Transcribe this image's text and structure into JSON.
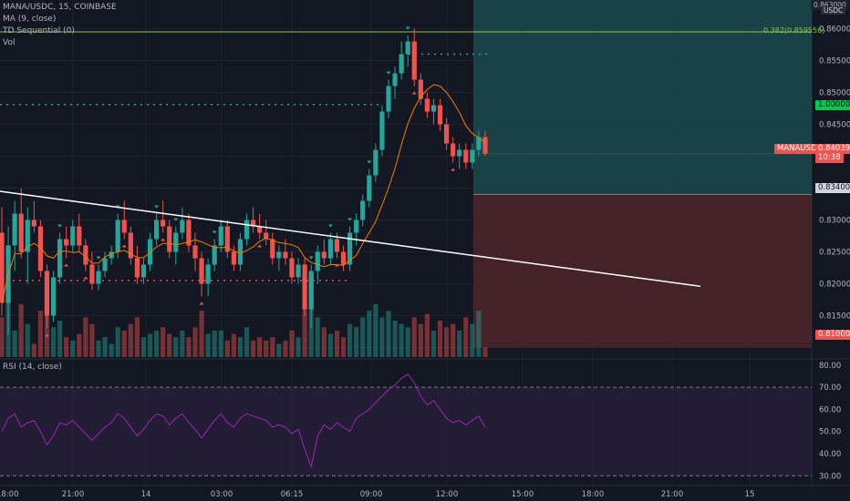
{
  "symbol_legend": "MANA/USDC, 15, COINBASE",
  "indicators": [
    "MA (9, close)",
    "TD Sequential (0)",
    "Vol"
  ],
  "rsi_legend": "RSI (14, close)",
  "currency_badge": "USDC",
  "top_price_tag": "0.863000",
  "fib_label": "0.382(0.859556)",
  "tags": {
    "tp_price": "1.000000",
    "last_symbol": "MANAUSDC",
    "last_price": "0.840397",
    "countdown": "10:38",
    "entry_price": "0.834000",
    "stop_price": "0.810000"
  },
  "price_axis": [
    "0.860000",
    "0.855000",
    "0.850000",
    "0.845000",
    "0.835000",
    "0.830000",
    "0.825000",
    "0.820000",
    "0.815000"
  ],
  "rsi_axis": [
    "80.00",
    "70.00",
    "60.00",
    "50.00",
    "40.00",
    "30.00"
  ],
  "time_axis": [
    "18:00",
    "21:00",
    "14",
    "03:00",
    "06:15",
    "09:00",
    "12:00",
    "15:00",
    "18:00",
    "21:00",
    "15"
  ],
  "colors": {
    "up": "#26a69a",
    "down": "#ef5350",
    "ma": "#f57c00",
    "rsi": "#9c27b0",
    "profit_zone": "#1a4a4c",
    "loss_zone": "#4a2428",
    "fib_line": "#8bc34a",
    "trendline": "#ffffff"
  },
  "icons": {
    "td_buy_marker": "triangle-up-icon",
    "td_sell_marker": "triangle-down-icon"
  },
  "chart_data": {
    "type": "candlestick",
    "title": "MANA/USDC, 15, COINBASE",
    "interval": "15",
    "y_range": [
      0.8085,
      0.8645
    ],
    "rsi_range": [
      26,
      82
    ],
    "rsi_bands": [
      70,
      30
    ],
    "candles": [
      {
        "o": 0.828,
        "h": 0.832,
        "l": 0.815,
        "c": 0.817
      },
      {
        "o": 0.817,
        "h": 0.829,
        "l": 0.812,
        "c": 0.826
      },
      {
        "o": 0.826,
        "h": 0.833,
        "l": 0.822,
        "c": 0.831
      },
      {
        "o": 0.831,
        "h": 0.835,
        "l": 0.824,
        "c": 0.825
      },
      {
        "o": 0.825,
        "h": 0.832,
        "l": 0.82,
        "c": 0.83
      },
      {
        "o": 0.83,
        "h": 0.833,
        "l": 0.828,
        "c": 0.829
      },
      {
        "o": 0.829,
        "h": 0.83,
        "l": 0.821,
        "c": 0.822
      },
      {
        "o": 0.822,
        "h": 0.823,
        "l": 0.813,
        "c": 0.815
      },
      {
        "o": 0.815,
        "h": 0.822,
        "l": 0.814,
        "c": 0.821
      },
      {
        "o": 0.821,
        "h": 0.828,
        "l": 0.82,
        "c": 0.827
      },
      {
        "o": 0.827,
        "h": 0.829,
        "l": 0.824,
        "c": 0.826
      },
      {
        "o": 0.826,
        "h": 0.83,
        "l": 0.825,
        "c": 0.829
      },
      {
        "o": 0.829,
        "h": 0.831,
        "l": 0.825,
        "c": 0.826
      },
      {
        "o": 0.826,
        "h": 0.827,
        "l": 0.822,
        "c": 0.823
      },
      {
        "o": 0.823,
        "h": 0.825,
        "l": 0.819,
        "c": 0.82
      },
      {
        "o": 0.82,
        "h": 0.823,
        "l": 0.819,
        "c": 0.822
      },
      {
        "o": 0.822,
        "h": 0.825,
        "l": 0.821,
        "c": 0.824
      },
      {
        "o": 0.824,
        "h": 0.826,
        "l": 0.823,
        "c": 0.825
      },
      {
        "o": 0.825,
        "h": 0.831,
        "l": 0.824,
        "c": 0.83
      },
      {
        "o": 0.83,
        "h": 0.833,
        "l": 0.827,
        "c": 0.828
      },
      {
        "o": 0.828,
        "h": 0.829,
        "l": 0.823,
        "c": 0.824
      },
      {
        "o": 0.824,
        "h": 0.826,
        "l": 0.82,
        "c": 0.821
      },
      {
        "o": 0.821,
        "h": 0.824,
        "l": 0.82,
        "c": 0.823
      },
      {
        "o": 0.823,
        "h": 0.828,
        "l": 0.822,
        "c": 0.827
      },
      {
        "o": 0.827,
        "h": 0.831,
        "l": 0.826,
        "c": 0.83
      },
      {
        "o": 0.83,
        "h": 0.833,
        "l": 0.828,
        "c": 0.829
      },
      {
        "o": 0.829,
        "h": 0.83,
        "l": 0.824,
        "c": 0.825
      },
      {
        "o": 0.825,
        "h": 0.829,
        "l": 0.823,
        "c": 0.828
      },
      {
        "o": 0.828,
        "h": 0.832,
        "l": 0.827,
        "c": 0.83
      },
      {
        "o": 0.83,
        "h": 0.831,
        "l": 0.825,
        "c": 0.826
      },
      {
        "o": 0.826,
        "h": 0.828,
        "l": 0.822,
        "c": 0.824
      },
      {
        "o": 0.824,
        "h": 0.825,
        "l": 0.818,
        "c": 0.82
      },
      {
        "o": 0.82,
        "h": 0.824,
        "l": 0.818,
        "c": 0.823
      },
      {
        "o": 0.823,
        "h": 0.827,
        "l": 0.822,
        "c": 0.826
      },
      {
        "o": 0.826,
        "h": 0.83,
        "l": 0.825,
        "c": 0.829
      },
      {
        "o": 0.829,
        "h": 0.83,
        "l": 0.824,
        "c": 0.825
      },
      {
        "o": 0.825,
        "h": 0.826,
        "l": 0.822,
        "c": 0.823
      },
      {
        "o": 0.823,
        "h": 0.828,
        "l": 0.822,
        "c": 0.827
      },
      {
        "o": 0.827,
        "h": 0.831,
        "l": 0.826,
        "c": 0.83
      },
      {
        "o": 0.83,
        "h": 0.832,
        "l": 0.828,
        "c": 0.829
      },
      {
        "o": 0.829,
        "h": 0.831,
        "l": 0.827,
        "c": 0.828
      },
      {
        "o": 0.828,
        "h": 0.83,
        "l": 0.826,
        "c": 0.827
      },
      {
        "o": 0.827,
        "h": 0.828,
        "l": 0.823,
        "c": 0.824
      },
      {
        "o": 0.824,
        "h": 0.826,
        "l": 0.822,
        "c": 0.825
      },
      {
        "o": 0.825,
        "h": 0.827,
        "l": 0.823,
        "c": 0.824
      },
      {
        "o": 0.824,
        "h": 0.825,
        "l": 0.82,
        "c": 0.821
      },
      {
        "o": 0.821,
        "h": 0.824,
        "l": 0.82,
        "c": 0.823
      },
      {
        "o": 0.823,
        "h": 0.824,
        "l": 0.815,
        "c": 0.816
      },
      {
        "o": 0.816,
        "h": 0.823,
        "l": 0.813,
        "c": 0.822
      },
      {
        "o": 0.822,
        "h": 0.826,
        "l": 0.82,
        "c": 0.825
      },
      {
        "o": 0.825,
        "h": 0.827,
        "l": 0.823,
        "c": 0.824
      },
      {
        "o": 0.824,
        "h": 0.828,
        "l": 0.823,
        "c": 0.827
      },
      {
        "o": 0.827,
        "h": 0.828,
        "l": 0.824,
        "c": 0.825
      },
      {
        "o": 0.825,
        "h": 0.826,
        "l": 0.822,
        "c": 0.823
      },
      {
        "o": 0.823,
        "h": 0.829,
        "l": 0.822,
        "c": 0.828
      },
      {
        "o": 0.828,
        "h": 0.831,
        "l": 0.826,
        "c": 0.83
      },
      {
        "o": 0.83,
        "h": 0.834,
        "l": 0.829,
        "c": 0.833
      },
      {
        "o": 0.833,
        "h": 0.838,
        "l": 0.832,
        "c": 0.837
      },
      {
        "o": 0.837,
        "h": 0.842,
        "l": 0.836,
        "c": 0.841
      },
      {
        "o": 0.841,
        "h": 0.848,
        "l": 0.84,
        "c": 0.847
      },
      {
        "o": 0.847,
        "h": 0.852,
        "l": 0.846,
        "c": 0.851
      },
      {
        "o": 0.851,
        "h": 0.854,
        "l": 0.849,
        "c": 0.853
      },
      {
        "o": 0.853,
        "h": 0.858,
        "l": 0.852,
        "c": 0.856
      },
      {
        "o": 0.856,
        "h": 0.859,
        "l": 0.854,
        "c": 0.858
      },
      {
        "o": 0.858,
        "h": 0.86,
        "l": 0.851,
        "c": 0.852
      },
      {
        "o": 0.852,
        "h": 0.853,
        "l": 0.848,
        "c": 0.849
      },
      {
        "o": 0.849,
        "h": 0.85,
        "l": 0.846,
        "c": 0.847
      },
      {
        "o": 0.847,
        "h": 0.849,
        "l": 0.845,
        "c": 0.848
      },
      {
        "o": 0.848,
        "h": 0.849,
        "l": 0.844,
        "c": 0.845
      },
      {
        "o": 0.845,
        "h": 0.846,
        "l": 0.841,
        "c": 0.842
      },
      {
        "o": 0.842,
        "h": 0.843,
        "l": 0.839,
        "c": 0.84
      },
      {
        "o": 0.84,
        "h": 0.842,
        "l": 0.838,
        "c": 0.841
      },
      {
        "o": 0.841,
        "h": 0.842,
        "l": 0.838,
        "c": 0.839
      },
      {
        "o": 0.839,
        "h": 0.842,
        "l": 0.838,
        "c": 0.841
      },
      {
        "o": 0.841,
        "h": 0.844,
        "l": 0.84,
        "c": 0.843
      },
      {
        "o": 0.843,
        "h": 0.844,
        "l": 0.84,
        "c": 0.8404
      }
    ],
    "rsi_values": [
      50,
      56,
      58,
      52,
      54,
      55,
      50,
      44,
      48,
      54,
      53,
      55,
      52,
      49,
      46,
      49,
      52,
      54,
      58,
      56,
      52,
      48,
      51,
      55,
      58,
      57,
      53,
      56,
      58,
      54,
      51,
      47,
      51,
      55,
      58,
      54,
      52,
      56,
      58,
      57,
      56,
      55,
      52,
      53,
      52,
      49,
      51,
      42,
      34,
      48,
      53,
      51,
      54,
      52,
      50,
      56,
      58,
      60,
      63,
      66,
      69,
      71,
      74,
      76,
      72,
      66,
      62,
      64,
      60,
      56,
      54,
      55,
      53,
      55,
      57,
      52
    ],
    "volumes": [
      12,
      20,
      8,
      16,
      10,
      4,
      14,
      22,
      9,
      11,
      6,
      5,
      7,
      12,
      10,
      5,
      6,
      4,
      9,
      8,
      10,
      12,
      6,
      7,
      8,
      9,
      7,
      6,
      8,
      6,
      9,
      14,
      7,
      8,
      8,
      5,
      7,
      6,
      9,
      5,
      6,
      5,
      6,
      4,
      5,
      8,
      6,
      16,
      22,
      12,
      9,
      7,
      8,
      6,
      10,
      9,
      12,
      14,
      16,
      12,
      14,
      11,
      10,
      9,
      12,
      10,
      13,
      8,
      11,
      9,
      10,
      8,
      12,
      10,
      14,
      3
    ],
    "ma_period": 9,
    "horizontal_levels": [
      0.8595,
      0.8481,
      0.856,
      0.8205
    ],
    "trendline": {
      "start_price": 0.8345,
      "end_price": 0.8196
    }
  }
}
